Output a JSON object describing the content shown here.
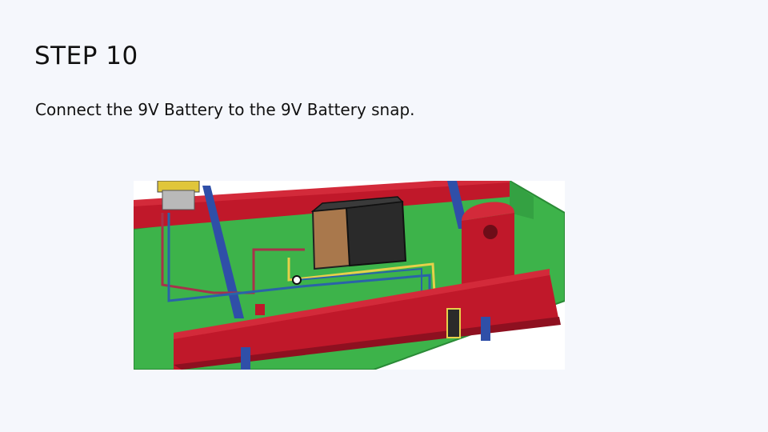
{
  "slide": {
    "title": "STEP 10",
    "instruction": "Connect the 9V Battery to the 9V Battery snap."
  },
  "figure": {
    "description_icon": "breadboard-battery-illustration",
    "colors": {
      "board": "#3db34a",
      "board_edge": "#2a8a36",
      "rail": "#c0182a",
      "rail_dark": "#8e1020",
      "post": "#2f4fa8",
      "battery_body": "#2a2a2a",
      "battery_cap": "#a9784c",
      "wire_yellow": "#e6d04a",
      "wire_blue": "#2a63a8",
      "wire_red": "#a8324a"
    }
  }
}
